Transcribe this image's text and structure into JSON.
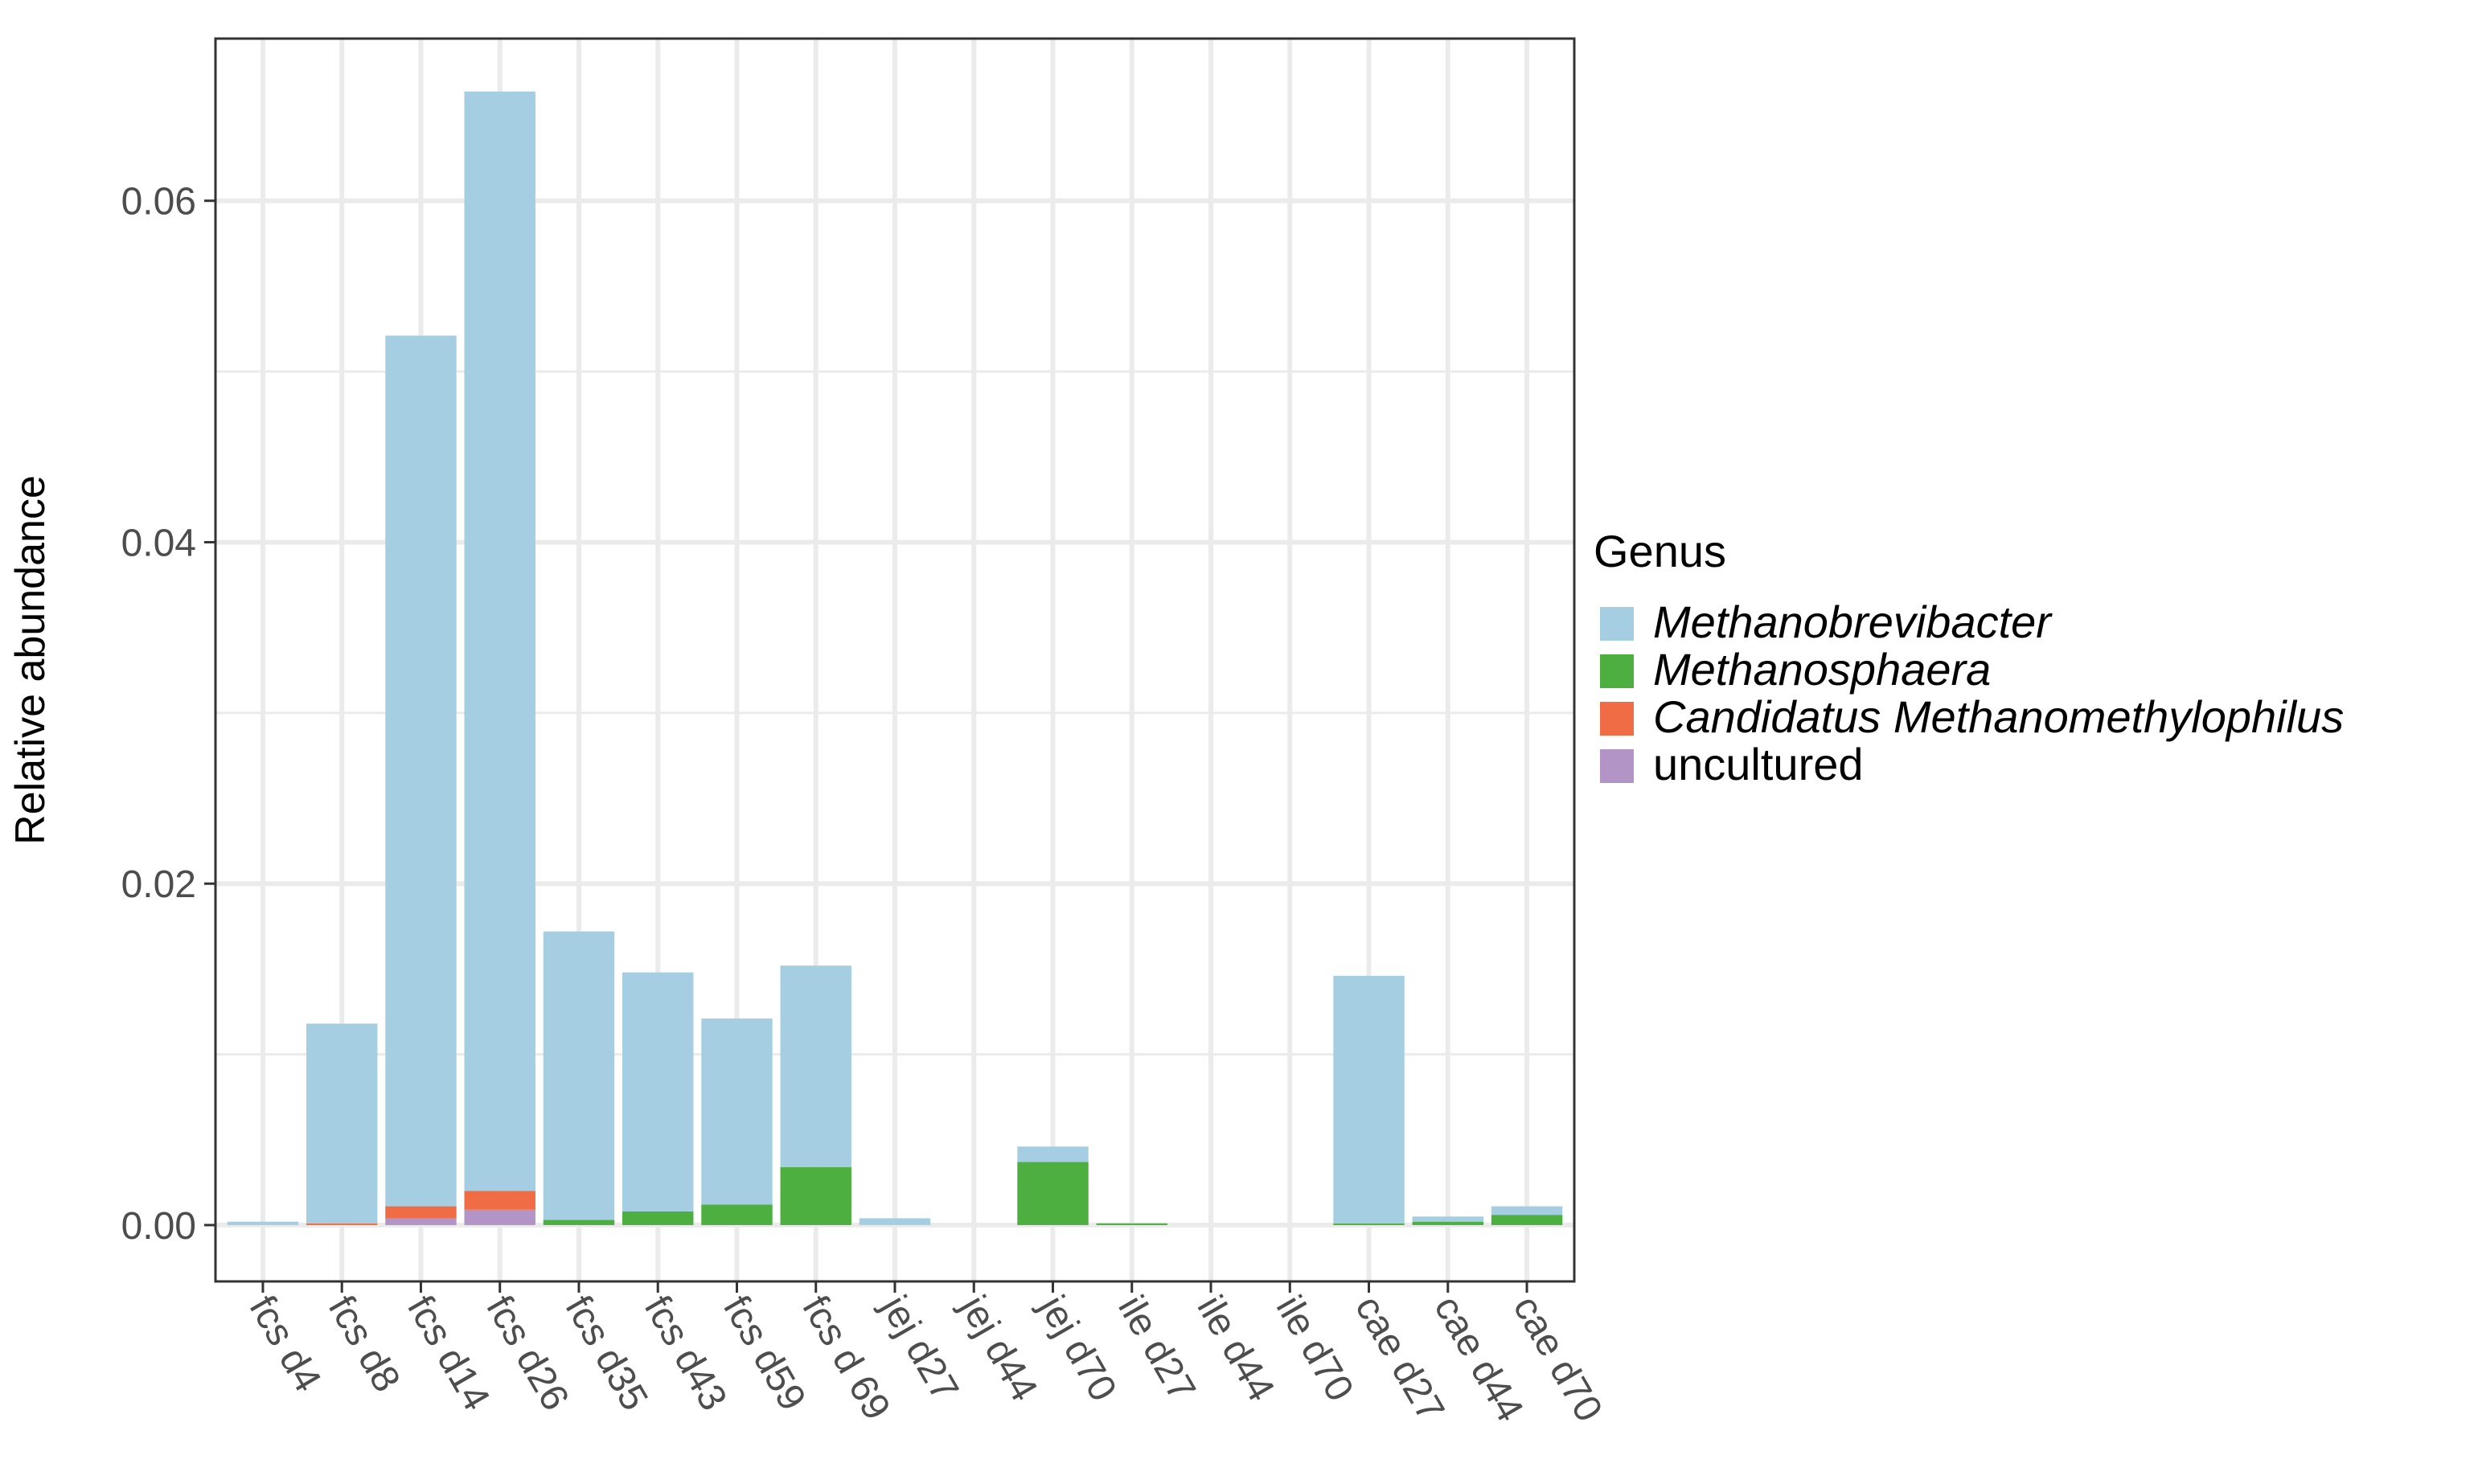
{
  "chart_data": {
    "type": "bar",
    "stacked": true,
    "title": "",
    "xlabel": "",
    "ylabel": "Relative abundance",
    "ylim": [
      -0.0033,
      0.0695
    ],
    "yticks": [
      0.0,
      0.02,
      0.04,
      0.06
    ],
    "ytick_labels": [
      "0.00",
      "0.02",
      "0.04",
      "0.06"
    ],
    "grid": true,
    "legend_position": "right",
    "legend_title": "Genus",
    "categories": [
      "fcs d4",
      "fcs d8",
      "fcs d14",
      "fcs d26",
      "fcs d35",
      "fcs d43",
      "fcs d59",
      "fcs d 69",
      "jej d27",
      "jej d44",
      "jej d70",
      "ile d27",
      "ile d44",
      "ile d70",
      "cae d27",
      "cae d44",
      "cae d70"
    ],
    "series": [
      {
        "name": "uncultured",
        "color": "#b294c7",
        "italic": false,
        "values": [
          0,
          0,
          0.0004,
          0.0009,
          0,
          0,
          0,
          0,
          0,
          0,
          0,
          0,
          0,
          0,
          0,
          0,
          0
        ]
      },
      {
        "name": "Candidatus Methanomethylophilus",
        "color": "#ef6c45",
        "italic": true,
        "values": [
          0,
          0.0001,
          0.0007,
          0.0011,
          0,
          0,
          0,
          0,
          0,
          0,
          0,
          0,
          0,
          0,
          0,
          0,
          0
        ]
      },
      {
        "name": "Methanosphaera",
        "color": "#4daf3f",
        "italic": true,
        "values": [
          0,
          0,
          0,
          0,
          0.0003,
          0.0008,
          0.0012,
          0.0034,
          0,
          0,
          0.0037,
          0.0001,
          0,
          0,
          0.0001,
          0.0002,
          0.0006
        ]
      },
      {
        "name": "Methanobrevibacter",
        "color": "#a6cee3",
        "italic": true,
        "values": [
          0.0002,
          0.0117,
          0.051,
          0.0644,
          0.0169,
          0.014,
          0.0109,
          0.0118,
          0.0004,
          0,
          0.0009,
          0,
          0,
          0,
          0.0145,
          0.0003,
          0.0005
        ]
      }
    ],
    "legend_order": [
      "Methanobrevibacter",
      "Methanosphaera",
      "Candidatus Methanomethylophilus",
      "uncultured"
    ]
  }
}
